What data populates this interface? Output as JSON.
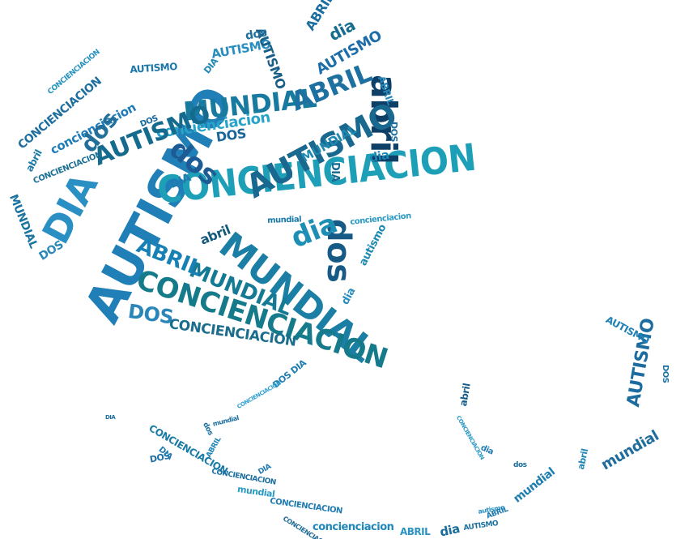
{
  "word_cloud": {
    "heart_words": [
      {
        "text": "AUTISMO",
        "color": "#1f7fb6"
      },
      {
        "text": "CONCIENCIACION",
        "color": "#1e9fb8"
      },
      {
        "text": "MUNDIAL",
        "color": "#1b7fa5"
      },
      {
        "text": "DIA",
        "color": "#2a8fc2"
      },
      {
        "text": "abril",
        "color": "#0e3f66"
      },
      {
        "text": "dos",
        "color": "#185a86"
      },
      {
        "text": "AUTISMO",
        "color": "#19688f"
      },
      {
        "text": "MUNDIAL",
        "color": "#187a9e"
      },
      {
        "text": "ABRIL",
        "color": "#1d70a0"
      },
      {
        "text": "concienciacion",
        "color": "#2aa3c9"
      },
      {
        "text": "AUTISMO",
        "color": "#156b8d"
      },
      {
        "text": "CONCIENCIACION",
        "color": "#157a8a"
      },
      {
        "text": "MUNDIAL",
        "color": "#157a94"
      },
      {
        "text": "dia",
        "color": "#1d8fb5"
      },
      {
        "text": "dos",
        "color": "#1c5b94"
      },
      {
        "text": "ABRIL",
        "color": "#1781b6"
      },
      {
        "text": "DOS",
        "color": "#2a86b8"
      },
      {
        "text": "CONCIENCIACION",
        "color": "#1a6d8c"
      },
      {
        "text": "CONCIENCIACION",
        "color": "#1f6ea0"
      },
      {
        "text": "AUTISMO",
        "color": "#1c6da8"
      },
      {
        "text": "concienciacion",
        "color": "#1f7cb8"
      },
      {
        "text": "dos",
        "color": "#236f9a"
      },
      {
        "text": "DOS",
        "color": "#19669a"
      },
      {
        "text": "dia",
        "color": "#166d8e"
      },
      {
        "text": "abril",
        "color": "#145a7c"
      },
      {
        "text": "MUNDIAL",
        "color": "#1f88ae"
      },
      {
        "text": "AUTISMO",
        "color": "#2a8dbf"
      },
      {
        "text": "ABRIL",
        "color": "#1a6e9e"
      },
      {
        "text": "DIA",
        "color": "#1f7bb0"
      },
      {
        "text": "DIA",
        "color": "#176a92"
      },
      {
        "text": "dia",
        "color": "#1887b4"
      },
      {
        "text": "AUTISMO",
        "color": "#1d77aa"
      },
      {
        "text": "autismo",
        "color": "#1e8ab0"
      },
      {
        "text": "DOS",
        "color": "#2a87b8"
      },
      {
        "text": "MUNDIAL",
        "color": "#1b74a0"
      },
      {
        "text": "CONCIENCIACION",
        "color": "#1a6f94"
      },
      {
        "text": "abril",
        "color": "#1b79a8"
      },
      {
        "text": "dia",
        "color": "#2a8ec0"
      },
      {
        "text": "concienciacion",
        "color": "#2a9ac4"
      },
      {
        "text": "DOS",
        "color": "#1e6fa2"
      },
      {
        "text": "ABRIL",
        "color": "#2588b8"
      },
      {
        "text": "AUTISMO",
        "color": "#1a5f88"
      },
      {
        "text": "dos",
        "color": "#1f6e9b"
      },
      {
        "text": "DIA",
        "color": "#1f85b5"
      },
      {
        "text": "mundial",
        "color": "#1a7aa8"
      },
      {
        "text": "DOS",
        "color": "#16689a"
      },
      {
        "text": "CONCIENCIACION",
        "color": "#2391bf"
      }
    ],
    "ribbon_words": [
      {
        "text": "DOS DIA",
        "color": "#1f7fb2"
      },
      {
        "text": "CONCIENCIACION",
        "color": "#2ea1d1"
      },
      {
        "text": "DIA",
        "color": "#1a6fa0"
      },
      {
        "text": "CONCIENCIACION",
        "color": "#1a7aa6"
      },
      {
        "text": "DOS",
        "color": "#1e6fa0"
      },
      {
        "text": "DIA",
        "color": "#1f7bb0"
      },
      {
        "text": "mundial",
        "color": "#1c6fa0"
      },
      {
        "text": "dos",
        "color": "#1a71a2"
      },
      {
        "text": "ABRIL",
        "color": "#2185b8"
      },
      {
        "text": "DIA",
        "color": "#1f7bb0"
      },
      {
        "text": "CONCIENCIACION",
        "color": "#1a6fa0"
      },
      {
        "text": "CONCIENCIACION",
        "color": "#1e7ab0"
      },
      {
        "text": "mundial",
        "color": "#2a9ac4"
      },
      {
        "text": "CONCIENCIACION",
        "color": "#1e6a96"
      },
      {
        "text": "concienciacion",
        "color": "#1f87b8"
      },
      {
        "text": "ABRIL",
        "color": "#2a93c2"
      },
      {
        "text": "dia",
        "color": "#1a6e9e"
      },
      {
        "text": "AUTISMO",
        "color": "#1c70a2"
      },
      {
        "text": "abril",
        "color": "#1a5f8c"
      },
      {
        "text": "CONCIENCIACION",
        "color": "#2799c5"
      },
      {
        "text": "dia",
        "color": "#1e7ab0"
      },
      {
        "text": "dos",
        "color": "#1a6a98"
      },
      {
        "text": "mundial",
        "color": "#1e7db0"
      },
      {
        "text": "abril",
        "color": "#1f85b5"
      },
      {
        "text": "mundial",
        "color": "#1f6d9c"
      },
      {
        "text": "AUTISMO",
        "color": "#1c6ca0"
      },
      {
        "text": "DOS",
        "color": "#1a71a2"
      },
      {
        "text": "AUTISMO",
        "color": "#1f80b4"
      },
      {
        "text": "autismo",
        "color": "#2a8fc0"
      },
      {
        "text": "ABRIL",
        "color": "#1d78ac"
      }
    ]
  }
}
